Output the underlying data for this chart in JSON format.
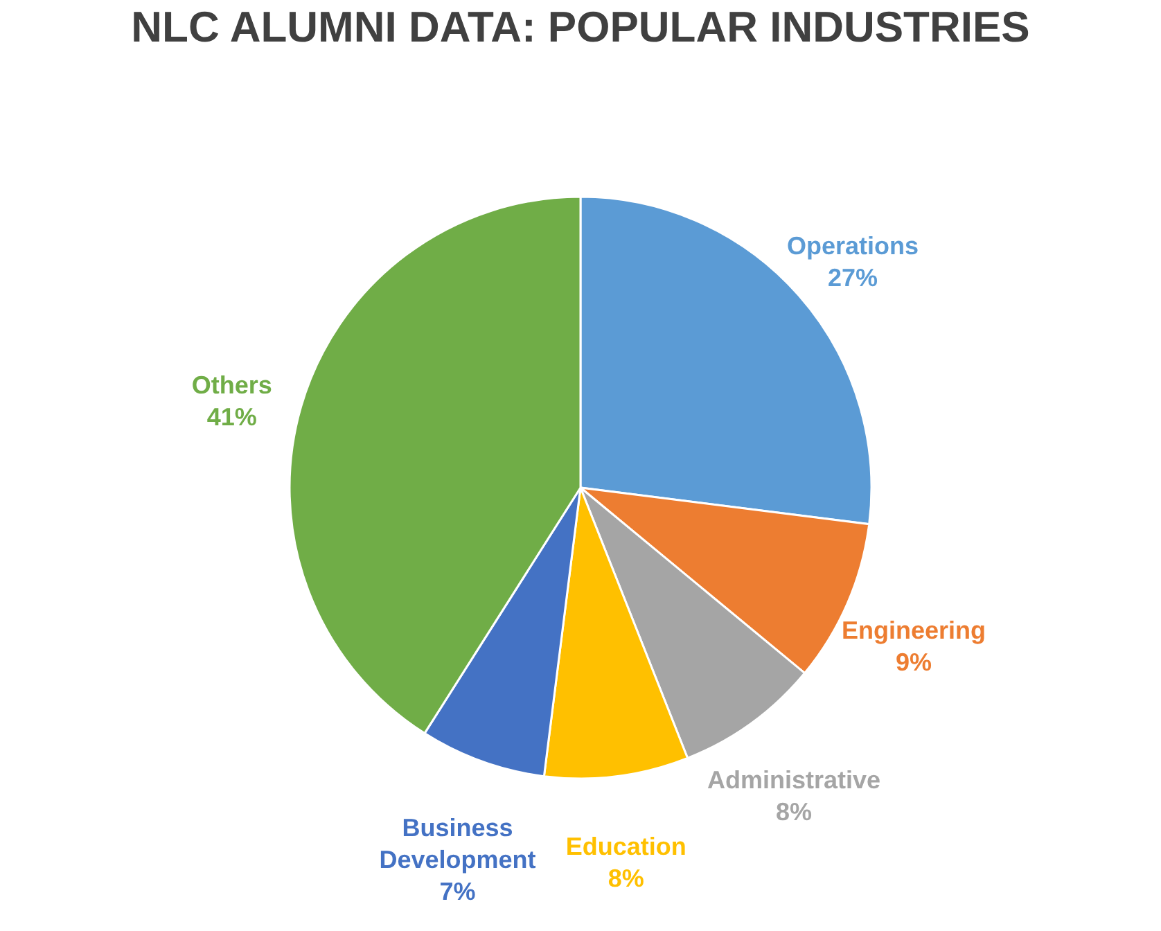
{
  "chart_data": {
    "type": "pie",
    "title": "NLC ALUMNI DATA: POPULAR INDUSTRIES",
    "categories": [
      "Operations",
      "Engineering",
      "Administrative",
      "Education",
      "Business Development",
      "Others"
    ],
    "values": [
      27,
      9,
      8,
      8,
      7,
      41
    ],
    "value_labels": [
      "27%",
      "9%",
      "8%",
      "8%",
      "7%",
      "41%"
    ],
    "colors": [
      "#5b9bd5",
      "#ed7d31",
      "#a5a5a5",
      "#ffc000",
      "#4472c4",
      "#70ad47"
    ],
    "legend": false
  }
}
